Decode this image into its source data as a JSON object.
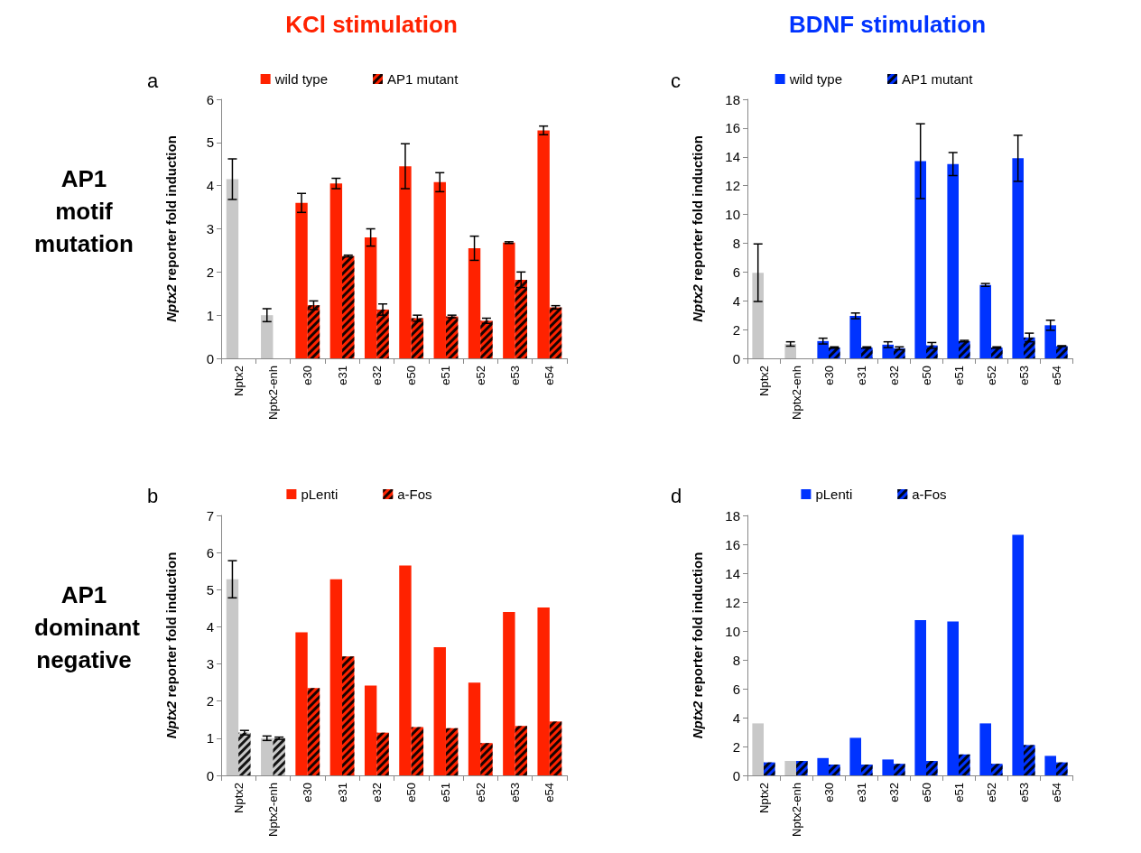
{
  "chart_data": [
    {
      "type": "bar",
      "title": "a",
      "annotations": [
        "KCl stimulation",
        "AP1 motif mutation"
      ],
      "ylabel": "Nptx2 reporter fold induction",
      "categories": [
        "Nptx2",
        "Nptx2-enh",
        "e30",
        "e31",
        "e32",
        "e50",
        "e51",
        "e52",
        "e53",
        "e54"
      ],
      "ylim": [
        0,
        6
      ],
      "yticks": [
        0,
        1,
        2,
        3,
        4,
        5,
        6
      ],
      "grid": false,
      "legend": "top",
      "series": [
        {
          "name": "wild type",
          "color": "#ff2200",
          "colors": [
            "#c8c8c8",
            "#c8c8c8",
            "#ff2200",
            "#ff2200",
            "#ff2200",
            "#ff2200",
            "#ff2200",
            "#ff2200",
            "#ff2200",
            "#ff2200"
          ],
          "values": [
            4.15,
            1.0,
            3.6,
            4.05,
            2.8,
            4.45,
            4.08,
            2.55,
            2.68,
            5.28
          ],
          "errors": [
            0.47,
            0.15,
            0.22,
            0.12,
            0.2,
            0.52,
            0.22,
            0.28,
            0.02,
            0.1
          ]
        },
        {
          "name": "AP1 mutant",
          "color": "#ff2200",
          "values": [
            null,
            null,
            1.23,
            2.37,
            1.13,
            0.93,
            0.97,
            0.87,
            1.82,
            1.18
          ],
          "errors": [
            null,
            null,
            0.1,
            0.02,
            0.13,
            0.07,
            0.03,
            0.06,
            0.18,
            0.04
          ]
        }
      ]
    },
    {
      "type": "bar",
      "title": "c",
      "annotations": [
        "BDNF stimulation"
      ],
      "ylabel": "Nptx2 reporter fold induction",
      "categories": [
        "Nptx2",
        "Nptx2-enh",
        "e30",
        "e31",
        "e32",
        "e50",
        "e51",
        "e52",
        "e53",
        "e54"
      ],
      "ylim": [
        0,
        18
      ],
      "yticks": [
        0,
        2,
        4,
        6,
        8,
        10,
        12,
        14,
        16,
        18
      ],
      "grid": false,
      "legend": "top",
      "series": [
        {
          "name": "wild type",
          "color": "#0033ff",
          "colors": [
            "#c8c8c8",
            "#c8c8c8",
            "#0033ff",
            "#0033ff",
            "#0033ff",
            "#0033ff",
            "#0033ff",
            "#0033ff",
            "#0033ff",
            "#0033ff"
          ],
          "values": [
            5.95,
            1.0,
            1.2,
            2.95,
            0.95,
            13.7,
            13.5,
            5.1,
            13.9,
            2.3
          ],
          "errors": [
            2.0,
            0.15,
            0.2,
            0.2,
            0.2,
            2.6,
            0.8,
            0.1,
            1.6,
            0.35
          ]
        },
        {
          "name": "AP1 mutant",
          "color": "#0033ff",
          "values": [
            null,
            null,
            0.75,
            0.75,
            0.7,
            0.9,
            1.2,
            0.75,
            1.45,
            0.85
          ],
          "errors": [
            null,
            null,
            0.05,
            0.05,
            0.1,
            0.2,
            0.05,
            0.05,
            0.3,
            0.03
          ]
        }
      ]
    },
    {
      "type": "bar",
      "title": "b",
      "annotations": [
        "AP1 dominant negative"
      ],
      "ylabel": "Nptx2 reporter fold induction",
      "categories": [
        "Nptx2",
        "Nptx2-enh",
        "e30",
        "e31",
        "e32",
        "e50",
        "e51",
        "e52",
        "e53",
        "e54"
      ],
      "ylim": [
        0,
        7
      ],
      "yticks": [
        0,
        1,
        2,
        3,
        4,
        5,
        6,
        7
      ],
      "grid": false,
      "legend": "top",
      "series": [
        {
          "name": "pLenti",
          "color": "#ff2200",
          "colors": [
            "#c8c8c8",
            "#c8c8c8",
            "#ff2200",
            "#ff2200",
            "#ff2200",
            "#ff2200",
            "#ff2200",
            "#ff2200",
            "#ff2200",
            "#ff2200"
          ],
          "values": [
            5.28,
            1.0,
            3.85,
            5.28,
            2.42,
            5.65,
            3.45,
            2.5,
            4.4,
            4.52
          ],
          "errors": [
            0.5,
            0.06,
            null,
            null,
            null,
            null,
            null,
            null,
            null,
            null
          ]
        },
        {
          "name": "a-Fos",
          "color": "#ff2200",
          "colors": [
            "#c8c8c8",
            "#c8c8c8",
            "#ff2200",
            "#ff2200",
            "#ff2200",
            "#ff2200",
            "#ff2200",
            "#ff2200",
            "#ff2200",
            "#ff2200"
          ],
          "values": [
            1.15,
            1.0,
            2.35,
            3.2,
            1.15,
            1.3,
            1.27,
            0.87,
            1.33,
            1.45
          ],
          "errors": [
            0.06,
            0.03,
            null,
            null,
            null,
            null,
            null,
            null,
            null,
            null
          ]
        }
      ]
    },
    {
      "type": "bar",
      "title": "d",
      "ylabel": "Nptx2 reporter fold induction",
      "categories": [
        "Nptx2",
        "Nptx2-enh",
        "e30",
        "e31",
        "e32",
        "e50",
        "e51",
        "e52",
        "e53",
        "e54"
      ],
      "ylim": [
        0,
        18
      ],
      "yticks": [
        0,
        2,
        4,
        6,
        8,
        10,
        12,
        14,
        16,
        18
      ],
      "grid": false,
      "legend": "top",
      "series": [
        {
          "name": "pLenti",
          "color": "#0033ff",
          "colors": [
            "#c8c8c8",
            "#c8c8c8",
            "#0033ff",
            "#0033ff",
            "#0033ff",
            "#0033ff",
            "#0033ff",
            "#0033ff",
            "#0033ff",
            "#0033ff"
          ],
          "values": [
            3.6,
            1.0,
            1.2,
            2.6,
            1.1,
            10.75,
            10.65,
            3.6,
            16.65,
            1.35
          ]
        },
        {
          "name": "a-Fos",
          "color": "#0033ff",
          "values": [
            0.9,
            1.0,
            0.75,
            0.75,
            0.8,
            1.0,
            1.45,
            0.8,
            2.1,
            0.9
          ]
        }
      ]
    }
  ]
}
